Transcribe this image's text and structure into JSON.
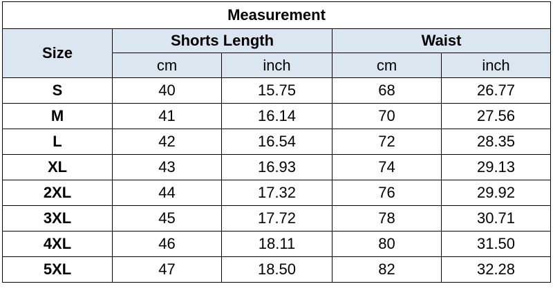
{
  "table": {
    "title": "Measurement",
    "size_header": "Size",
    "groups": [
      "Shorts Length",
      "Waist"
    ],
    "units": [
      "cm",
      "inch",
      "cm",
      "inch"
    ],
    "rows": [
      [
        "S",
        "40",
        "15.75",
        "68",
        "26.77"
      ],
      [
        "M",
        "41",
        "16.14",
        "70",
        "27.56"
      ],
      [
        "L",
        "42",
        "16.54",
        "72",
        "28.35"
      ],
      [
        "XL",
        "43",
        "16.93",
        "74",
        "29.13"
      ],
      [
        "2XL",
        "44",
        "17.32",
        "76",
        "29.92"
      ],
      [
        "3XL",
        "45",
        "17.72",
        "78",
        "30.71"
      ],
      [
        "4XL",
        "46",
        "18.11",
        "80",
        "31.50"
      ],
      [
        "5XL",
        "47",
        "18.50",
        "82",
        "32.28"
      ]
    ]
  }
}
